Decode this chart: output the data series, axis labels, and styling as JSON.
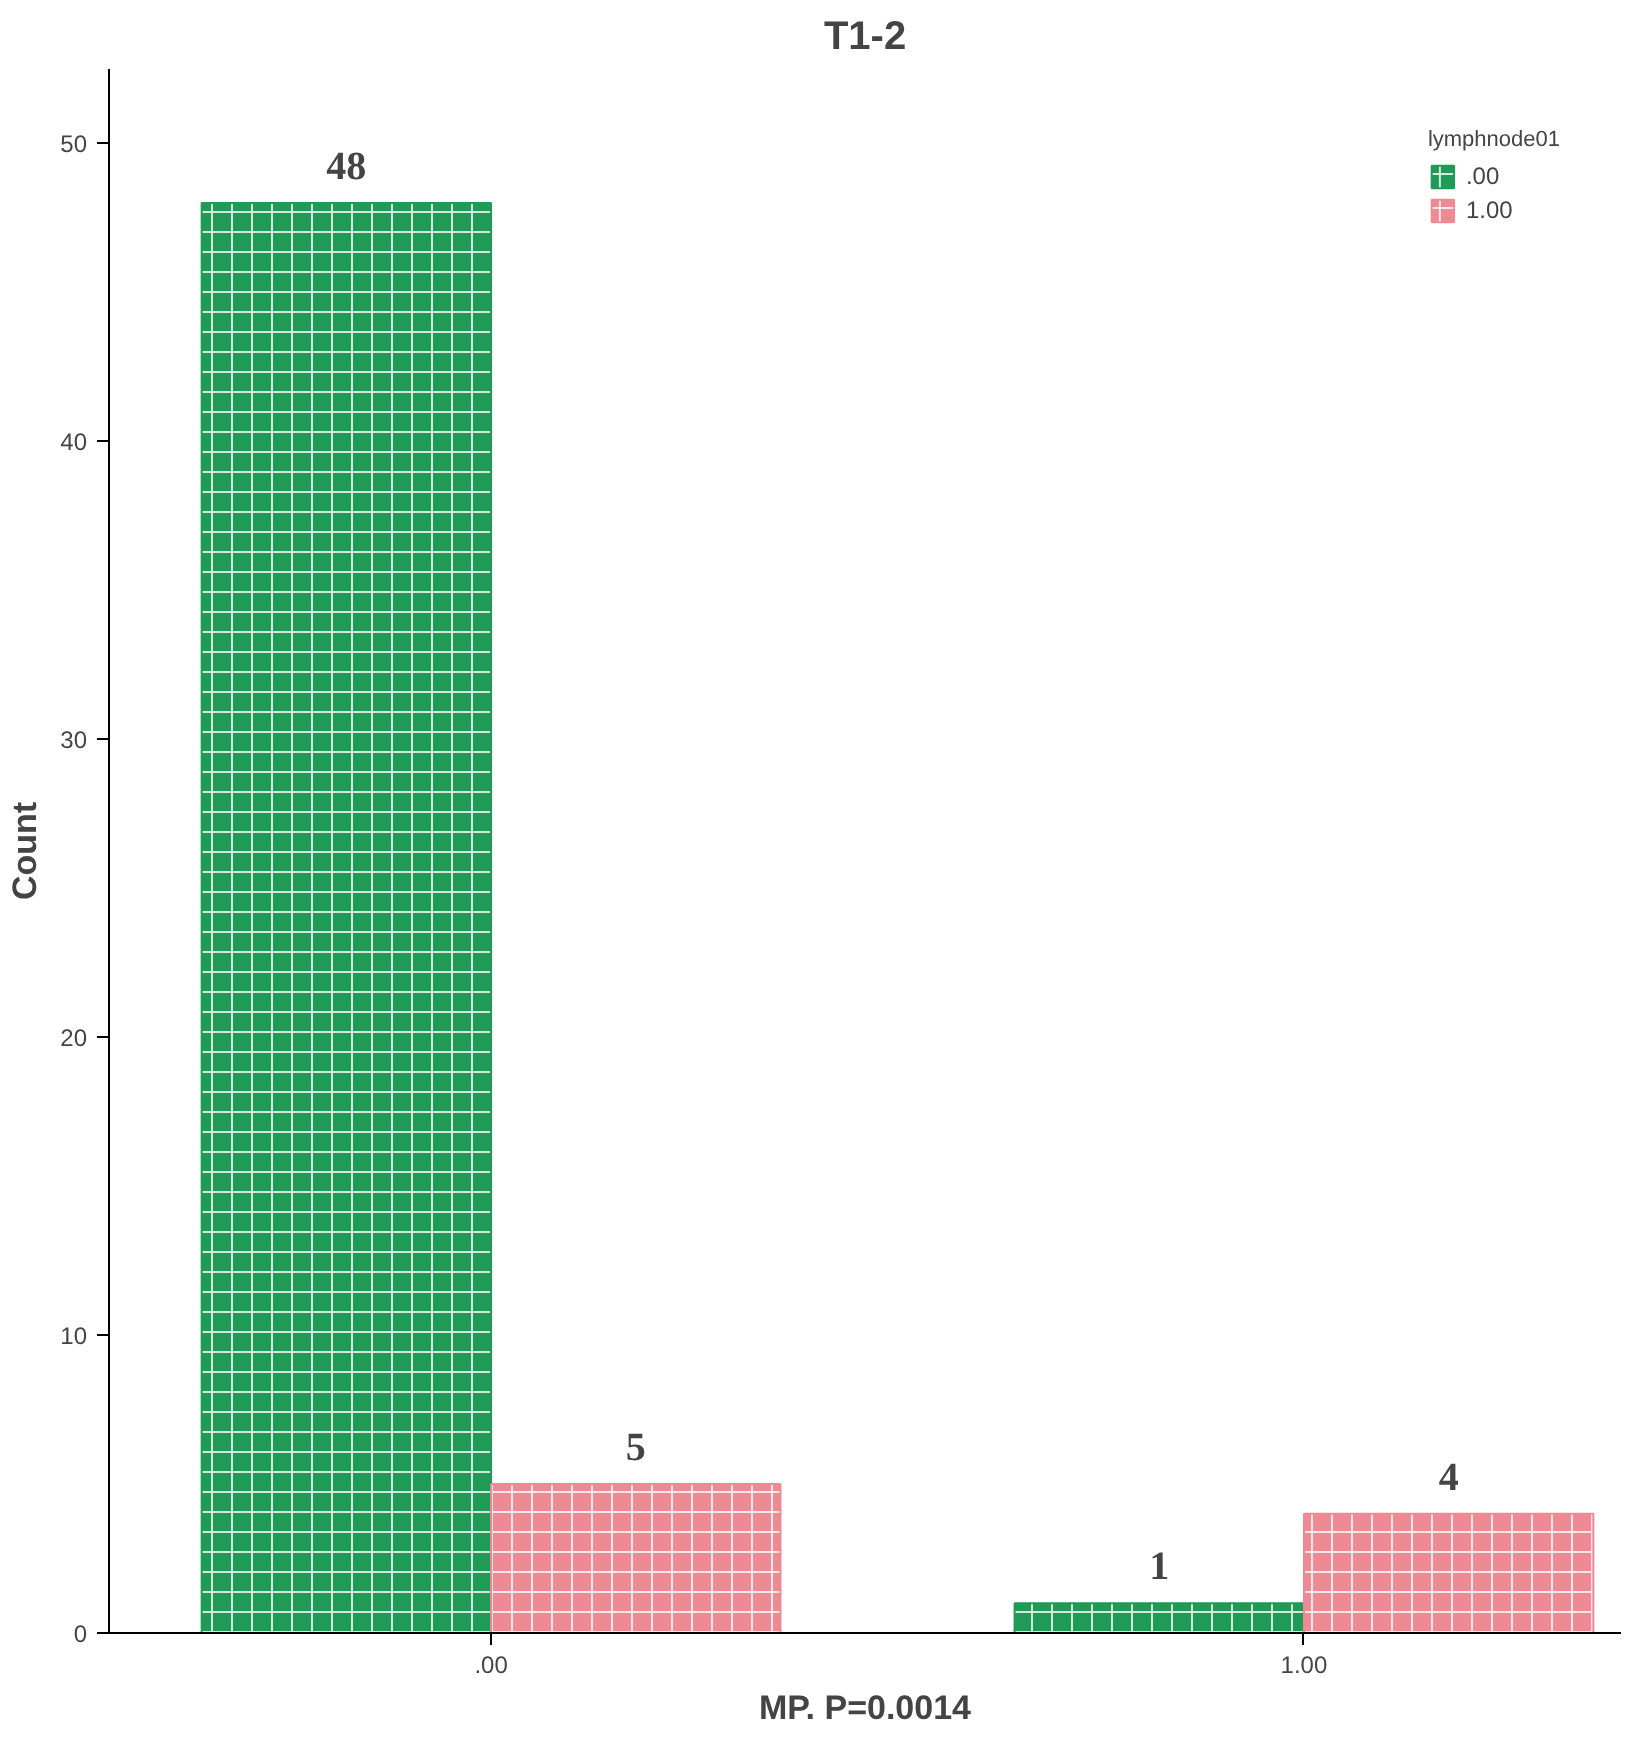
{
  "chart_data": {
    "type": "bar",
    "title": "T1-2",
    "xlabel": "MP. P=0.0014",
    "ylabel": "Count",
    "legend_title": "lymphnode01",
    "categories": [
      ".00",
      "1.00"
    ],
    "series": [
      {
        "name": ".00",
        "color": "#1f9a57",
        "values": [
          48,
          1
        ]
      },
      {
        "name": "1.00",
        "color": "#ee8a94",
        "values": [
          5,
          4
        ]
      }
    ],
    "ylim": [
      0,
      52.5
    ],
    "yticks": [
      0,
      10,
      20,
      30,
      40,
      50
    ],
    "grid": false,
    "legend": "top right",
    "data_labels": true
  }
}
